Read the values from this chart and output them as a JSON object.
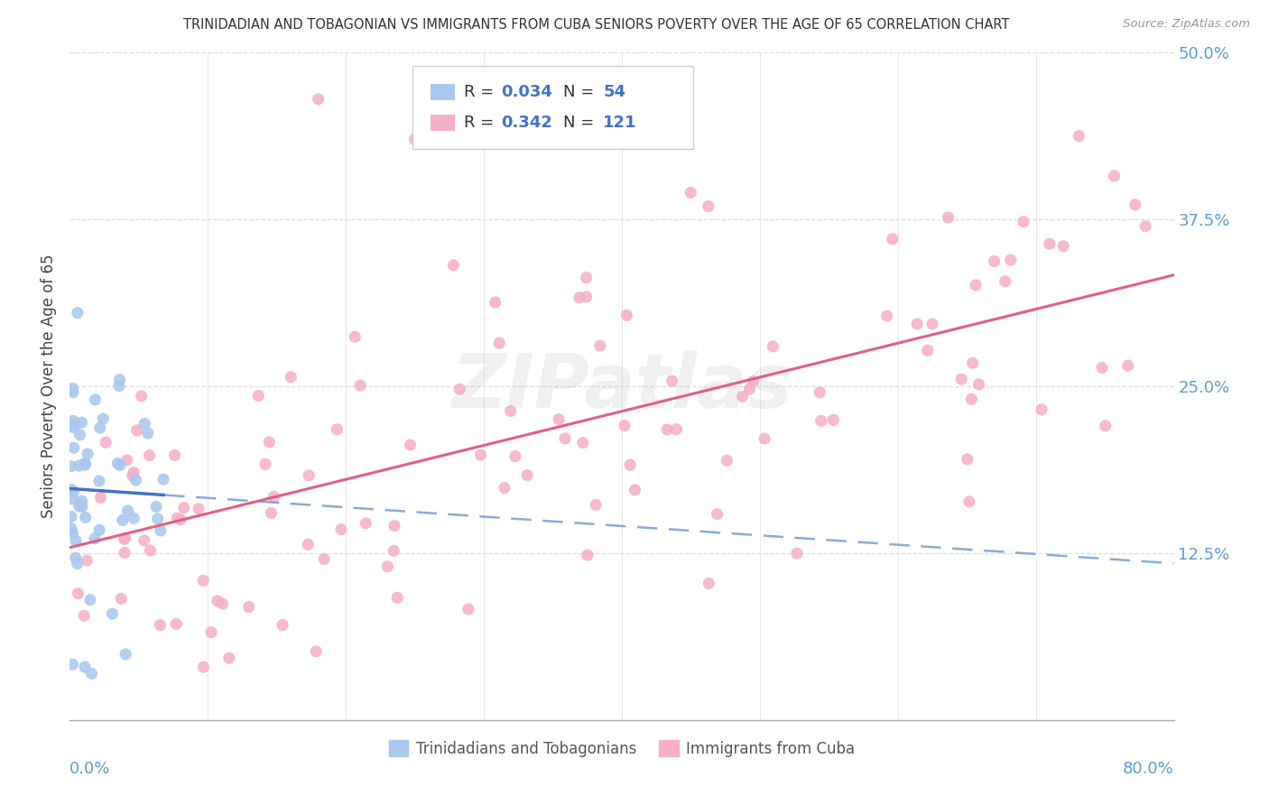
{
  "title": "TRINIDADIAN AND TOBAGONIAN VS IMMIGRANTS FROM CUBA SENIORS POVERTY OVER THE AGE OF 65 CORRELATION CHART",
  "source": "Source: ZipAtlas.com",
  "ylabel": "Seniors Poverty Over the Age of 65",
  "xlim": [
    0.0,
    0.8
  ],
  "ylim": [
    0.0,
    0.5
  ],
  "yticks": [
    0.125,
    0.25,
    0.375,
    0.5
  ],
  "ytick_labels": [
    "12.5%",
    "25.0%",
    "37.5%",
    "50.0%"
  ],
  "xtick_left_label": "0.0%",
  "xtick_right_label": "80.0%",
  "legend_r1": "0.034",
  "legend_n1": "54",
  "legend_r2": "0.342",
  "legend_n2": "121",
  "color_blue_scatter": "#A8C8F0",
  "color_pink_scatter": "#F5B0C8",
  "color_blue_line": "#4472C4",
  "color_blue_dash": "#6090D0",
  "color_pink_line": "#E06080",
  "color_axis_label": "#5B9BD5",
  "color_legend_value": "#4472C4",
  "color_grid": "#DDDDDD",
  "background_color": "#FFFFFF",
  "watermark_text": "ZIPatlas",
  "series1_name": "Trinidadians and Tobagonians",
  "series2_name": "Immigrants from Cuba",
  "N1": 54,
  "N2": 121
}
